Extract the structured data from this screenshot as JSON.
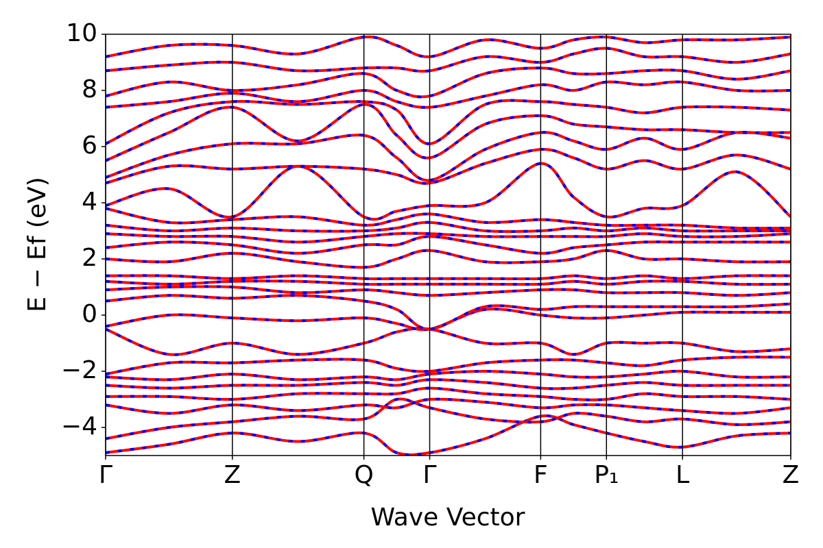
{
  "chart_data": {
    "type": "band",
    "x_label": "Wave Vector",
    "y_label": "E − Ef (eV)",
    "xlim": [
      0,
      1
    ],
    "ylim": [
      -5,
      10
    ],
    "xticks": [
      {
        "value": 0,
        "label": "Γ"
      },
      {
        "value": 0.185,
        "label": "Z"
      },
      {
        "value": 0.377,
        "label": "Q"
      },
      {
        "value": 0.473,
        "label": "Γ"
      },
      {
        "value": 0.635,
        "label": "F"
      },
      {
        "value": 0.731,
        "label": "P₁"
      },
      {
        "value": 0.842,
        "label": "L"
      },
      {
        "value": 1,
        "label": "Z"
      }
    ],
    "yticks": [
      {
        "value": -4,
        "label": "−4"
      },
      {
        "value": -2,
        "label": "−2"
      },
      0,
      2,
      4,
      6,
      8,
      10
    ],
    "vertical_lines": true,
    "color": "#ff0000",
    "dash_color": "#0000ff",
    "x": [
      0,
      0.0925,
      0.185,
      0.281,
      0.377,
      0.425,
      0.473,
      0.554,
      0.635,
      0.683,
      0.731,
      0.786,
      0.842,
      0.921,
      1
    ],
    "series": [
      {
        "values": [
          -4.9,
          -4.6,
          -4.2,
          -4.5,
          -4.2,
          -4.9,
          -4.9,
          -4.4,
          -3.6,
          -3.9,
          -4.2,
          -4.5,
          -4.7,
          -4.3,
          -4.2
        ]
      },
      {
        "values": [
          -4.4,
          -4.0,
          -3.8,
          -3.6,
          -3.7,
          -3.0,
          -3.3,
          -3.7,
          -3.8,
          -3.5,
          -3.6,
          -3.8,
          -3.7,
          -3.9,
          -3.8
        ]
      },
      {
        "values": [
          -3.2,
          -3.5,
          -3.2,
          -3.4,
          -3.2,
          -3.3,
          -3.0,
          -3.1,
          -3.3,
          -3.2,
          -3.2,
          -3.3,
          -3.4,
          -3.5,
          -3.3
        ]
      },
      {
        "values": [
          -2.9,
          -2.9,
          -3.0,
          -2.8,
          -2.8,
          -2.8,
          -2.6,
          -2.8,
          -2.9,
          -3.0,
          -3.0,
          -2.8,
          -2.9,
          -2.9,
          -3.0
        ]
      },
      {
        "values": [
          -2.5,
          -2.6,
          -2.5,
          -2.5,
          -2.4,
          -2.5,
          -2.3,
          -2.4,
          -2.6,
          -2.6,
          -2.5,
          -2.4,
          -2.5,
          -2.5,
          -2.5
        ]
      },
      {
        "values": [
          -2.2,
          -2.3,
          -2.1,
          -2.3,
          -2.2,
          -2.3,
          -2.1,
          -2.0,
          -2.1,
          -2.2,
          -2.2,
          -2.1,
          -2.0,
          -2.2,
          -2.2
        ]
      },
      {
        "values": [
          -2.1,
          -1.7,
          -1.7,
          -1.6,
          -1.6,
          -1.9,
          -2.0,
          -1.7,
          -1.6,
          -1.6,
          -1.7,
          -1.8,
          -1.6,
          -1.5,
          -1.5
        ]
      },
      {
        "values": [
          -0.5,
          -1.4,
          -1.0,
          -1.4,
          -1.0,
          -0.6,
          -0.5,
          -1.0,
          -1.0,
          -1.4,
          -1.0,
          -1.0,
          -1.0,
          -1.3,
          -1.2
        ]
      },
      {
        "values": [
          -0.4,
          0.0,
          -0.1,
          -0.2,
          -0.1,
          -0.3,
          -0.5,
          0.2,
          0.0,
          -0.1,
          -0.1,
          0.0,
          0.1,
          0.1,
          0.1
        ]
      },
      {
        "values": [
          0.5,
          0.7,
          0.6,
          0.7,
          0.5,
          0.2,
          -0.5,
          0.3,
          0.2,
          0.3,
          0.3,
          0.3,
          0.3,
          0.3,
          0.4
        ]
      },
      {
        "values": [
          0.9,
          1.0,
          1.0,
          0.8,
          0.9,
          0.8,
          0.7,
          0.8,
          0.9,
          0.9,
          0.8,
          0.8,
          0.8,
          0.7,
          0.8
        ]
      },
      {
        "values": [
          1.2,
          1.1,
          1.2,
          1.2,
          1.1,
          1.1,
          1.1,
          1.1,
          1.1,
          1.2,
          1.1,
          1.2,
          1.2,
          1.1,
          1.1
        ]
      },
      {
        "values": [
          1.4,
          1.4,
          1.3,
          1.4,
          1.3,
          1.3,
          1.3,
          1.3,
          1.3,
          1.4,
          1.3,
          1.4,
          1.3,
          1.4,
          1.4
        ]
      },
      {
        "values": [
          2.0,
          1.9,
          2.2,
          1.9,
          1.7,
          2.0,
          2.3,
          1.9,
          1.9,
          2.0,
          2.3,
          2.0,
          2.0,
          1.9,
          1.9
        ]
      },
      {
        "values": [
          2.4,
          2.6,
          2.5,
          2.2,
          2.5,
          2.5,
          2.8,
          2.5,
          2.2,
          2.4,
          2.5,
          2.6,
          2.6,
          2.6,
          2.6
        ]
      },
      {
        "values": [
          2.9,
          2.8,
          2.8,
          2.6,
          2.8,
          2.9,
          2.9,
          2.8,
          2.8,
          2.8,
          2.8,
          2.9,
          2.8,
          2.8,
          2.9
        ]
      },
      {
        "values": [
          3.2,
          3.0,
          3.1,
          3.0,
          3.0,
          3.1,
          3.3,
          3.0,
          3.0,
          3.1,
          3.0,
          3.1,
          3.0,
          3.0,
          3.0
        ]
      },
      {
        "values": [
          3.8,
          3.3,
          3.4,
          3.5,
          3.2,
          3.4,
          3.6,
          3.3,
          3.4,
          3.3,
          3.2,
          3.2,
          3.2,
          3.1,
          3.1
        ]
      },
      {
        "values": [
          3.9,
          4.5,
          3.5,
          5.3,
          3.5,
          3.7,
          3.9,
          4.0,
          5.4,
          4.2,
          3.5,
          3.8,
          3.9,
          5.1,
          3.5
        ]
      },
      {
        "values": [
          4.7,
          5.3,
          5.2,
          5.3,
          5.2,
          5.0,
          4.7,
          5.4,
          5.9,
          5.6,
          5.2,
          5.5,
          5.2,
          5.7,
          5.2
        ]
      },
      {
        "values": [
          4.9,
          5.7,
          6.1,
          6.1,
          6.4,
          5.6,
          4.8,
          5.9,
          6.5,
          6.2,
          5.9,
          6.3,
          5.9,
          6.5,
          6.3
        ]
      },
      {
        "values": [
          5.5,
          6.5,
          7.4,
          6.2,
          7.5,
          6.4,
          5.6,
          6.8,
          7.1,
          6.8,
          6.7,
          6.6,
          6.6,
          6.5,
          6.5
        ]
      },
      {
        "values": [
          6.1,
          7.2,
          7.6,
          7.5,
          7.6,
          7.3,
          6.1,
          7.5,
          7.6,
          7.5,
          7.4,
          7.2,
          7.4,
          7.4,
          7.3
        ]
      },
      {
        "values": [
          7.4,
          7.6,
          7.9,
          7.6,
          8.0,
          7.6,
          7.4,
          7.8,
          8.2,
          8.0,
          8.3,
          8.2,
          8.3,
          8.0,
          8.0
        ]
      },
      {
        "values": [
          7.8,
          8.3,
          8.0,
          8.2,
          8.6,
          8.0,
          7.8,
          8.6,
          8.8,
          8.6,
          8.6,
          8.7,
          8.7,
          8.4,
          8.7
        ]
      },
      {
        "values": [
          8.7,
          8.9,
          9.0,
          8.7,
          8.8,
          8.8,
          8.7,
          9.2,
          9.0,
          9.3,
          9.5,
          9.2,
          9.2,
          9.0,
          9.3
        ]
      },
      {
        "values": [
          9.2,
          9.6,
          9.6,
          9.3,
          9.9,
          9.6,
          9.2,
          9.8,
          9.5,
          9.8,
          9.9,
          9.7,
          9.8,
          9.8,
          9.9
        ]
      }
    ]
  }
}
